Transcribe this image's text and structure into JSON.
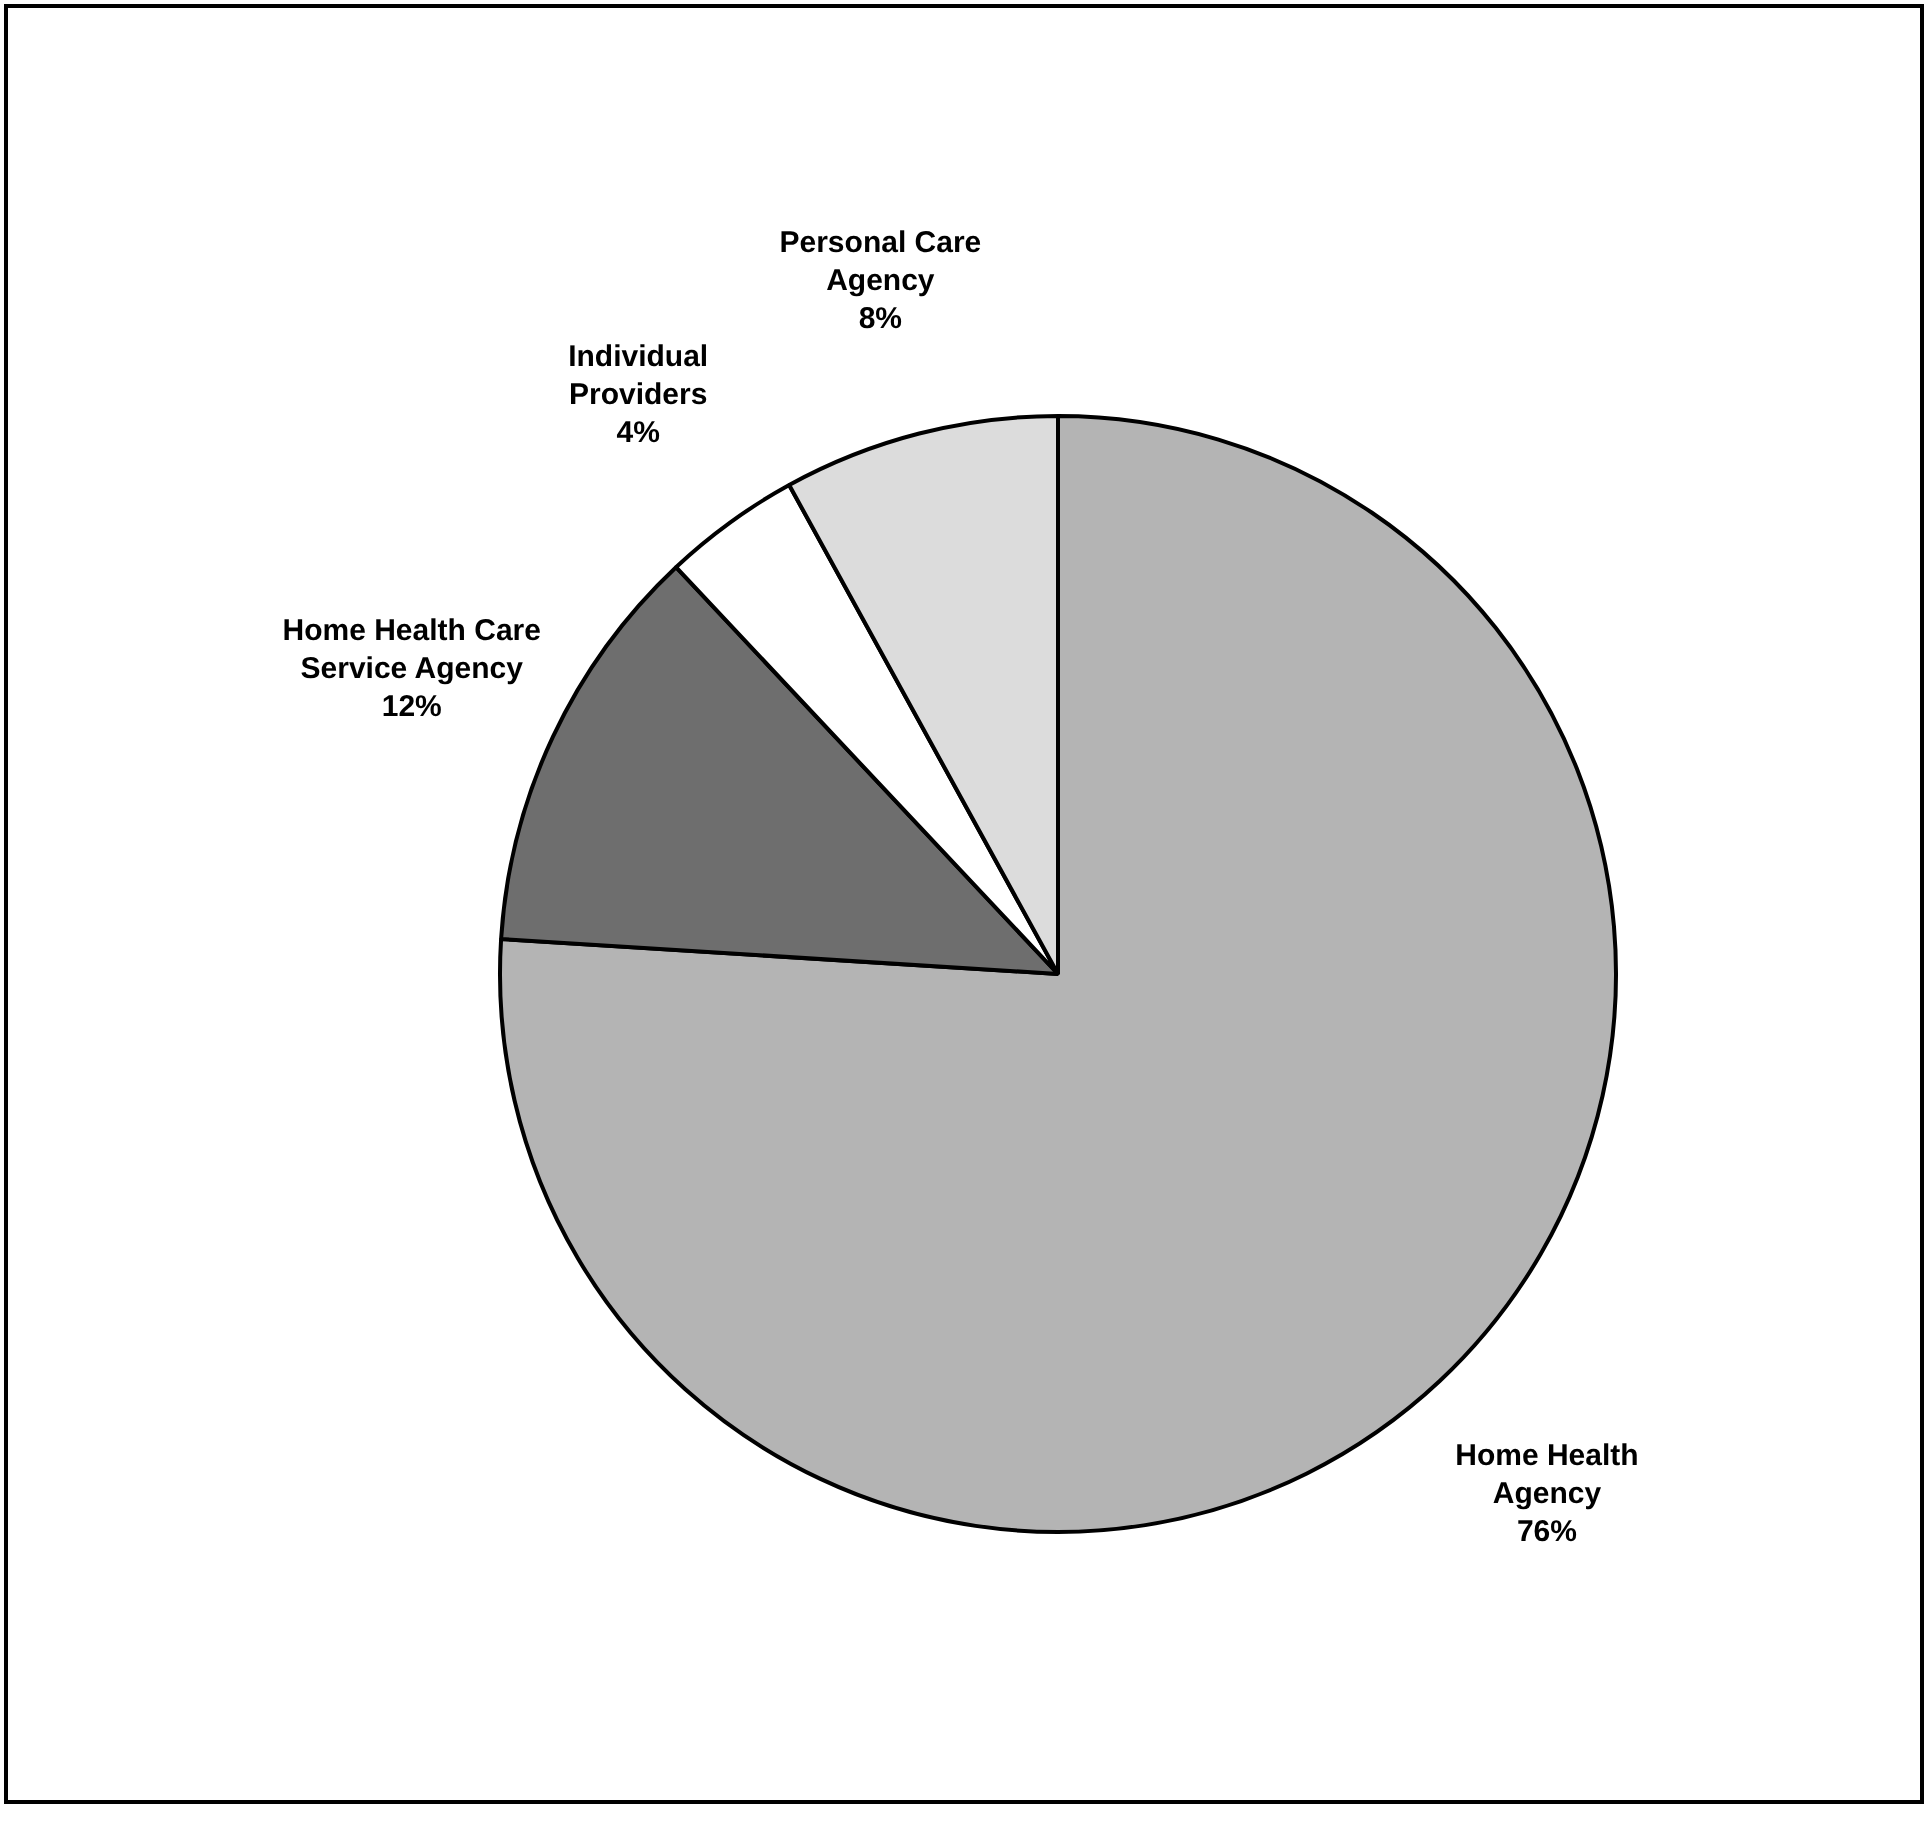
{
  "chart_data": {
    "type": "pie",
    "categories": [
      "Home Health Agency",
      "Home Health Care Service Agency",
      "Individual Providers",
      "Personal Care Agency"
    ],
    "values": [
      76,
      12,
      4,
      8
    ],
    "colors": [
      "#b4b4b4",
      "#6e6e6e",
      "#ffffff",
      "#dcdcdc"
    ],
    "value_labels": [
      "76%",
      "12%",
      "4%",
      "8%"
    ],
    "legend": false
  }
}
